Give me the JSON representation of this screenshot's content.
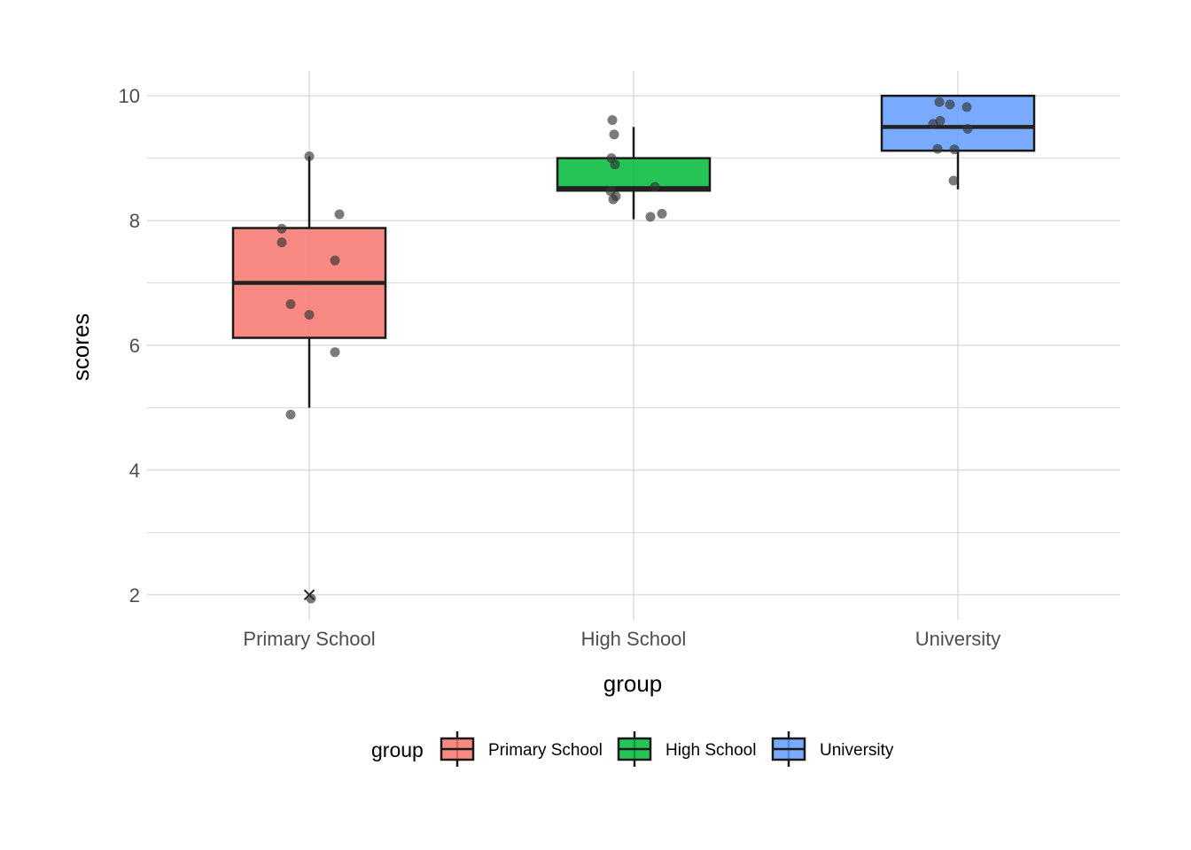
{
  "chart_data": {
    "type": "box",
    "xlabel": "group",
    "ylabel": "scores",
    "categories": [
      "Primary School",
      "High School",
      "University"
    ],
    "colors": [
      "#f8766d",
      "#00ba38",
      "#619cff"
    ],
    "y_ticks": [
      2,
      4,
      6,
      8,
      10
    ],
    "ylim": [
      1.6,
      10.4
    ],
    "grid": true,
    "legend": {
      "title": "group",
      "position": "bottom",
      "entries": [
        "Primary School",
        "High School",
        "University"
      ]
    },
    "boxes": [
      {
        "name": "Primary School",
        "q1": 6.12,
        "median": 7.0,
        "q3": 7.88,
        "whisker_low": 5.0,
        "whisker_high": 9.03,
        "outliers": [
          2.0
        ]
      },
      {
        "name": "High School",
        "q1": 8.48,
        "median": 8.52,
        "q3": 9.0,
        "whisker_low": 8.02,
        "whisker_high": 9.5
      },
      {
        "name": "University",
        "q1": 9.12,
        "median": 9.5,
        "q3": 10.0,
        "whisker_low": 8.5,
        "whisker_high": 10.0
      }
    ],
    "points": [
      {
        "group": "Primary School",
        "y": [
          9.03,
          8.1,
          7.87,
          7.65,
          7.36,
          6.66,
          6.49,
          5.89,
          4.89,
          1.94
        ]
      },
      {
        "group": "High School",
        "y": [
          9.61,
          9.38,
          9.0,
          8.9,
          8.54,
          8.47,
          8.39,
          8.34,
          8.11,
          8.06
        ]
      },
      {
        "group": "University",
        "y": [
          9.9,
          9.86,
          9.82,
          9.6,
          9.55,
          9.47,
          9.15,
          9.14,
          8.64
        ]
      }
    ]
  }
}
